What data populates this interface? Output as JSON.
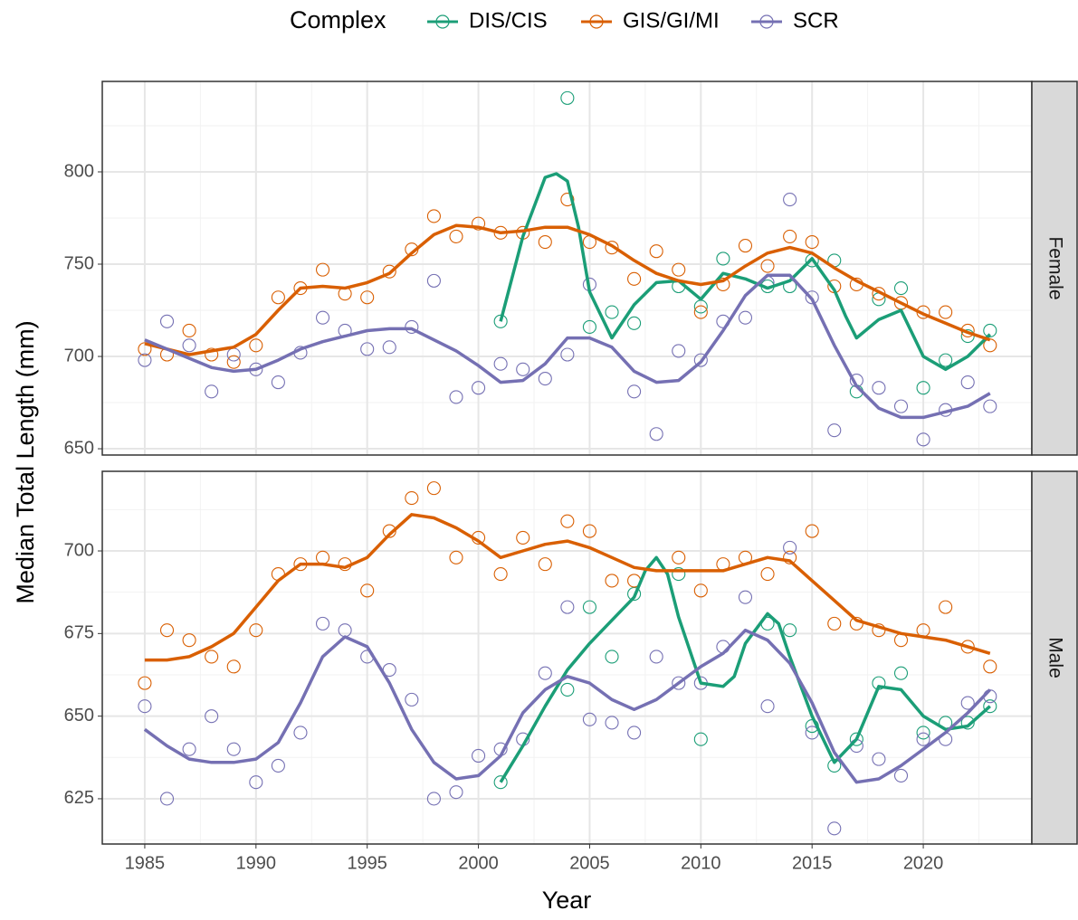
{
  "chart_data": {
    "type": "scatter",
    "legend_title": "Complex",
    "legend_position": "top",
    "xlabel": "Year",
    "ylabel": "Median Total Length (mm)",
    "grid": true,
    "xlim": [
      1983.09,
      2024.88
    ],
    "xticks": [
      1985,
      1990,
      1995,
      2000,
      2005,
      2010,
      2015,
      2020
    ],
    "minor_xticks": [
      1987.5,
      1992.5,
      1997.5,
      2002.5,
      2007.5,
      2012.5,
      2017.5,
      2022.5
    ],
    "series": [
      {
        "name": "DIS/CIS",
        "color": "#1b9e77"
      },
      {
        "name": "GIS/GI/MI",
        "color": "#d95f02"
      },
      {
        "name": "SCR",
        "color": "#7570b3"
      }
    ],
    "panels": [
      {
        "strip": "Female",
        "ylim": [
          646.6,
          849
        ],
        "yticks": [
          650,
          700,
          750,
          800
        ],
        "minor_yticks": [
          675,
          725,
          775,
          825
        ],
        "points": [
          {
            "x": [
              2001,
              2004,
              2005,
              2006,
              2007,
              2009,
              2010,
              2011,
              2013,
              2014,
              2015,
              2016,
              2017,
              2018,
              2019,
              2020,
              2021,
              2022,
              2023
            ],
            "values": [
              719,
              840,
              716,
              724,
              718,
              738,
              727,
              753,
              738,
              738,
              752,
              752,
              681,
              731,
              737,
              683,
              698,
              711,
              714
            ]
          },
          {
            "x": [
              1985,
              1986,
              1987,
              1988,
              1989,
              1990,
              1991,
              1992,
              1993,
              1994,
              1995,
              1996,
              1997,
              1998,
              1999,
              2000,
              2001,
              2002,
              2003,
              2004,
              2005,
              2006,
              2007,
              2008,
              2009,
              2010,
              2011,
              2012,
              2013,
              2014,
              2015,
              2016,
              2017,
              2018,
              2019,
              2020,
              2021,
              2022,
              2023
            ],
            "values": [
              704,
              701,
              714,
              701,
              697,
              706,
              732,
              737,
              747,
              734,
              732,
              746,
              758,
              776,
              765,
              772,
              767,
              767,
              762,
              785,
              762,
              759,
              742,
              757,
              747,
              724,
              739,
              760,
              749,
              765,
              762,
              738,
              739,
              734,
              729,
              724,
              724,
              714,
              706
            ]
          },
          {
            "x": [
              1985,
              1986,
              1987,
              1988,
              1989,
              1990,
              1991,
              1992,
              1993,
              1994,
              1995,
              1996,
              1997,
              1998,
              1999,
              2000,
              2001,
              2002,
              2003,
              2004,
              2005,
              2007,
              2008,
              2009,
              2010,
              2011,
              2012,
              2013,
              2014,
              2015,
              2016,
              2017,
              2018,
              2019,
              2020,
              2021,
              2022,
              2023
            ],
            "values": [
              698,
              719,
              706,
              681,
              701,
              693,
              686,
              702,
              721,
              714,
              704,
              705,
              716,
              741,
              678,
              683,
              696,
              693,
              688,
              701,
              739,
              681,
              658,
              703,
              698,
              719,
              721,
              740,
              785,
              732,
              660,
              687,
              683,
              673,
              655,
              671,
              686,
              673
            ]
          }
        ],
        "smooth": [
          {
            "x": [
              2001,
              2002,
              2003,
              2003.5,
              2004,
              2004.5,
              2005,
              2006,
              2007,
              2008,
              2009,
              2010,
              2010.5,
              2011,
              2012,
              2013,
              2014,
              2015,
              2016,
              2016.5,
              2017,
              2018,
              2019,
              2020,
              2021,
              2022,
              2023
            ],
            "values": [
              719,
              765,
              797,
              799,
              795,
              770,
              735,
              710,
              728,
              740,
              741,
              731,
              738,
              745,
              742,
              737,
              741,
              753,
              736,
              722,
              710,
              720,
              725,
              700,
              693,
              700,
              712
            ]
          },
          {
            "x": [
              1985,
              1987,
              1989,
              1990,
              1991,
              1992,
              1993,
              1994,
              1995,
              1996,
              1997,
              1998,
              1999,
              2000,
              2001,
              2002,
              2003,
              2004,
              2005,
              2006,
              2007,
              2008,
              2009,
              2010,
              2011,
              2012,
              2013,
              2014,
              2015,
              2016,
              2017,
              2018,
              2019,
              2020,
              2021,
              2022,
              2023
            ],
            "values": [
              707,
              701,
              705,
              712,
              725,
              737,
              738,
              737,
              740,
              745,
              756,
              766,
              771,
              770,
              767,
              768,
              770,
              770,
              766,
              760,
              752,
              745,
              741,
              739,
              741,
              749,
              756,
              759,
              756,
              748,
              741,
              735,
              729,
              723,
              718,
              713,
              709
            ]
          },
          {
            "x": [
              1985,
              1986,
              1987,
              1988,
              1989,
              1990,
              1991,
              1992,
              1993,
              1994,
              1995,
              1996,
              1997,
              1998,
              1999,
              2000,
              2001,
              2002,
              2003,
              2004,
              2005,
              2006,
              2007,
              2008,
              2009,
              2010,
              2011,
              2012,
              2013,
              2014,
              2015,
              2016,
              2017,
              2018,
              2019,
              2020,
              2021,
              2022,
              2023
            ],
            "values": [
              709,
              704,
              699,
              694,
              692,
              693,
              698,
              704,
              708,
              711,
              714,
              715,
              715,
              709,
              703,
              695,
              686,
              687,
              696,
              710,
              710,
              705,
              692,
              686,
              687,
              697,
              714,
              733,
              744,
              744,
              731,
              706,
              684,
              672,
              667,
              667,
              670,
              673,
              680
            ]
          }
        ]
      },
      {
        "strip": "Male",
        "ylim": [
          611.3,
          724.1
        ],
        "yticks": [
          625,
          650,
          675,
          700
        ],
        "minor_yticks": [
          612.5,
          637.5,
          662.5,
          687.5,
          712.5
        ],
        "points": [
          {
            "x": [
              2001,
              2004,
              2005,
              2006,
              2007,
              2009,
              2010,
              2013,
              2014,
              2015,
              2016,
              2017,
              2018,
              2019,
              2020,
              2021,
              2022,
              2023
            ],
            "values": [
              630,
              658,
              683,
              668,
              687,
              693,
              643,
              678,
              676,
              647,
              635,
              643,
              660,
              663,
              645,
              648,
              648,
              653
            ]
          },
          {
            "x": [
              1985,
              1986,
              1987,
              1988,
              1989,
              1990,
              1991,
              1992,
              1993,
              1994,
              1995,
              1996,
              1997,
              1998,
              1999,
              2000,
              2001,
              2002,
              2003,
              2004,
              2005,
              2006,
              2007,
              2009,
              2010,
              2011,
              2012,
              2013,
              2014,
              2015,
              2016,
              2017,
              2018,
              2019,
              2020,
              2021,
              2022,
              2023
            ],
            "values": [
              660,
              676,
              673,
              668,
              665,
              676,
              693,
              696,
              698,
              696,
              688,
              706,
              716,
              719,
              698,
              704,
              693,
              704,
              696,
              709,
              706,
              691,
              691,
              698,
              688,
              696,
              698,
              693,
              698,
              706,
              678,
              678,
              676,
              673,
              676,
              683,
              671,
              665
            ]
          },
          {
            "x": [
              1985,
              1986,
              1987,
              1988,
              1989,
              1990,
              1991,
              1992,
              1993,
              1994,
              1995,
              1996,
              1997,
              1998,
              1999,
              2000,
              2001,
              2002,
              2003,
              2004,
              2005,
              2006,
              2007,
              2008,
              2009,
              2010,
              2011,
              2012,
              2013,
              2014,
              2015,
              2016,
              2017,
              2018,
              2019,
              2020,
              2021,
              2022,
              2023
            ],
            "values": [
              653,
              625,
              640,
              650,
              640,
              630,
              635,
              645,
              678,
              676,
              668,
              664,
              655,
              625,
              627,
              638,
              640,
              643,
              663,
              683,
              649,
              648,
              645,
              668,
              660,
              660,
              671,
              686,
              653,
              701,
              645,
              616,
              641,
              637,
              632,
              643,
              643,
              654,
              656
            ]
          }
        ],
        "smooth": [
          {
            "x": [
              2001,
              2002,
              2003,
              2004,
              2005,
              2006,
              2007,
              2007.5,
              2008,
              2008.5,
              2009,
              2010,
              2011,
              2011.5,
              2012,
              2013,
              2013.5,
              2014,
              2015,
              2016,
              2017,
              2018,
              2019,
              2020,
              2021,
              2022,
              2023
            ],
            "values": [
              630,
              641,
              653,
              664,
              672,
              679,
              686,
              694,
              698,
              693,
              680,
              660,
              659,
              662,
              672,
              681,
              678,
              668,
              650,
              636,
              643,
              659,
              658,
              650,
              646,
              647,
              653
            ]
          },
          {
            "x": [
              1985,
              1986,
              1987,
              1988,
              1989,
              1990,
              1991,
              1992,
              1993,
              1994,
              1995,
              1996,
              1997,
              1998,
              1999,
              2000,
              2001,
              2002,
              2003,
              2004,
              2005,
              2006,
              2007,
              2008,
              2009,
              2010,
              2011,
              2012,
              2013,
              2014,
              2015,
              2016,
              2017,
              2018,
              2019,
              2020,
              2021,
              2022,
              2023
            ],
            "values": [
              667,
              667,
              668,
              671,
              675,
              683,
              691,
              696,
              696,
              695,
              698,
              705,
              711,
              710,
              707,
              703,
              698,
              700,
              702,
              703,
              701,
              698,
              695,
              694,
              694,
              694,
              694,
              696,
              698,
              697,
              691,
              685,
              679,
              677,
              675,
              674,
              673,
              671,
              669
            ]
          },
          {
            "x": [
              1985,
              1986,
              1987,
              1988,
              1989,
              1990,
              1991,
              1992,
              1993,
              1994,
              1995,
              1996,
              1997,
              1998,
              1999,
              2000,
              2001,
              2002,
              2003,
              2004,
              2005,
              2006,
              2007,
              2008,
              2009,
              2010,
              2011,
              2012,
              2013,
              2014,
              2015,
              2016,
              2017,
              2018,
              2019,
              2020,
              2021,
              2022,
              2023
            ],
            "values": [
              646,
              641,
              637,
              636,
              636,
              637,
              642,
              654,
              668,
              674,
              671,
              660,
              646,
              636,
              631,
              632,
              638,
              651,
              658,
              662,
              660,
              655,
              652,
              655,
              660,
              665,
              669,
              676,
              673,
              666,
              654,
              639,
              630,
              631,
              635,
              640,
              645,
              651,
              658
            ]
          }
        ]
      }
    ]
  }
}
